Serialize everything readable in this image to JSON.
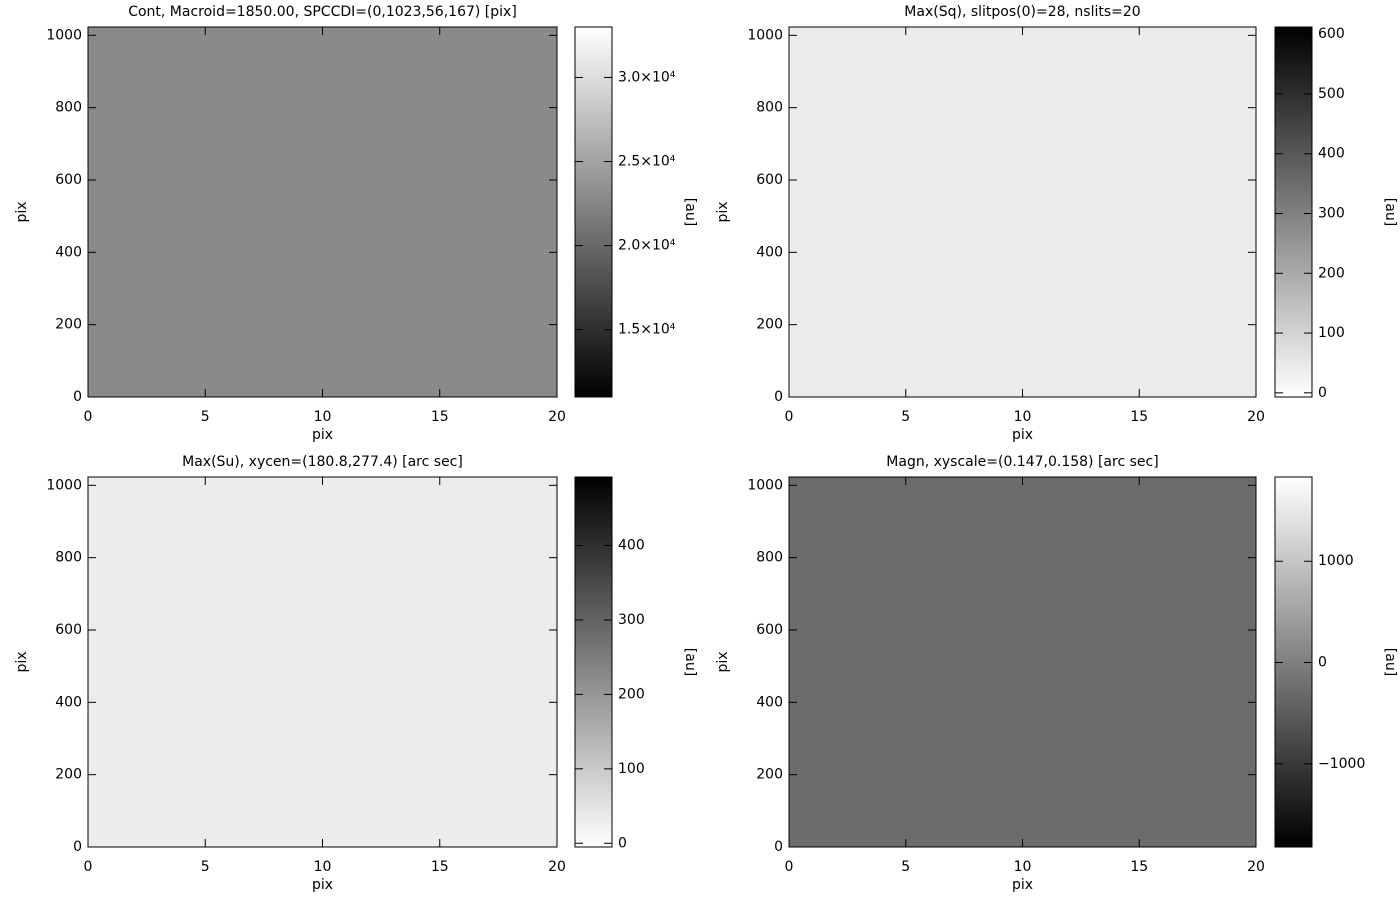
{
  "chart_data": [
    {
      "type": "image",
      "title": "Cont, Macroid=1850.00, SPCCDI=(0,1023,56,167) [pix]",
      "xlabel": "pix",
      "ylabel": "pix",
      "xlim": [
        0,
        20
      ],
      "xticks": [
        0,
        5,
        10,
        15,
        20
      ],
      "ylim": [
        0,
        1023
      ],
      "yticks": [
        0,
        200,
        400,
        600,
        800,
        1000
      ],
      "color": "#8a8a8a",
      "colormap": "gray",
      "reversed": false,
      "colorbar": {
        "label": "[au]",
        "lim": [
          11000,
          33000
        ],
        "ticks": [
          {
            "value": 15000,
            "label": "1.5×10⁴"
          },
          {
            "value": 20000,
            "label": "2.0×10⁴"
          },
          {
            "value": 25000,
            "label": "2.5×10⁴"
          },
          {
            "value": 30000,
            "label": "3.0×10⁴"
          }
        ]
      }
    },
    {
      "type": "image",
      "title": "Max(Sq), slitpos(0)=28, nslits=20",
      "xlabel": "pix",
      "ylabel": "pix",
      "xlim": [
        0,
        20
      ],
      "xticks": [
        0,
        5,
        10,
        15,
        20
      ],
      "ylim": [
        0,
        1023
      ],
      "yticks": [
        0,
        200,
        400,
        600,
        800,
        1000
      ],
      "color": "#ebebeb",
      "colormap": "gray",
      "reversed": true,
      "colorbar": {
        "label": "[au]",
        "lim": [
          -7,
          612
        ],
        "ticks": [
          0,
          100,
          200,
          300,
          400,
          500,
          600
        ]
      }
    },
    {
      "type": "image",
      "title": "Max(Su), xycen=(180.8,277.4) [arc sec]",
      "xlabel": "pix",
      "ylabel": "pix",
      "xlim": [
        0,
        20
      ],
      "xticks": [
        0,
        5,
        10,
        15,
        20
      ],
      "ylim": [
        0,
        1023
      ],
      "yticks": [
        0,
        200,
        400,
        600,
        800,
        1000
      ],
      "color": "#ececec",
      "colormap": "gray",
      "reversed": true,
      "colorbar": {
        "label": "[au]",
        "lim": [
          -5,
          492
        ],
        "ticks": [
          0,
          100,
          200,
          300,
          400
        ]
      }
    },
    {
      "type": "image",
      "title": "Magn, xyscale=(0.147,0.158) [arc sec]",
      "xlabel": "pix",
      "ylabel": "pix",
      "xlim": [
        0,
        20
      ],
      "xticks": [
        0,
        5,
        10,
        15,
        20
      ],
      "ylim": [
        0,
        1023
      ],
      "yticks": [
        0,
        200,
        400,
        600,
        800,
        1000
      ],
      "color": "#6c6c6c",
      "colormap": "gray",
      "reversed": false,
      "colorbar": {
        "label": "[au]",
        "lim": [
          -1822,
          1832
        ],
        "ticks": [
          {
            "value": -1000,
            "label": "−1000"
          },
          0,
          1000
        ]
      }
    }
  ]
}
